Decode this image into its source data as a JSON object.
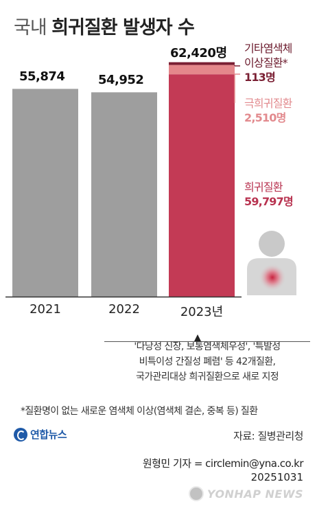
{
  "title": {
    "light": "국내",
    "bold": "희귀질환 발생자 수"
  },
  "chart_data": {
    "type": "bar",
    "categories": [
      "2021",
      "2022",
      "2023년"
    ],
    "value_labels": [
      "55,874",
      "54,952",
      "62,420명"
    ],
    "totals": [
      55874,
      54952,
      62420
    ],
    "stacked_2023": [
      {
        "name": "희귀질환",
        "value": 59797,
        "value_label": "59,797명",
        "color": "#c33a55"
      },
      {
        "name": "극희귀질환",
        "value": 2510,
        "value_label": "2,510명",
        "color": "#e4878b"
      },
      {
        "name": "기타염색체 이상질환*",
        "value": 113,
        "value_label": "113명",
        "color": "#7a1f33"
      }
    ],
    "bar_color_previous": "#9e9e9e",
    "ylim": [
      0,
      65000
    ]
  },
  "annotations": {
    "other_line1": "기타염색체",
    "other_line2": "이상질환*",
    "other_value": "113명",
    "extreme_label": "극희귀질환",
    "extreme_value": "2,510명",
    "rare_label": "희귀질환",
    "rare_value": "59,797명"
  },
  "note": {
    "line1": "'다낭성 신장, 보통염색체우성', '특발성",
    "line2": "비특이성 간질성 폐렴' 등 42개질환,",
    "line3": "국가관리대상 희귀질환으로 새로 지정"
  },
  "footnote": "*질환명이 없는 새로운 염색체 이상(염색체 결손, 중복 등) 질환",
  "logo_text": "연합뉴스",
  "source": "자료: 질병관리청",
  "reporter": "원형민 기자 = circlemin@yna.co.kr",
  "date": "20251031",
  "watermark": "YONHAP NEWS"
}
